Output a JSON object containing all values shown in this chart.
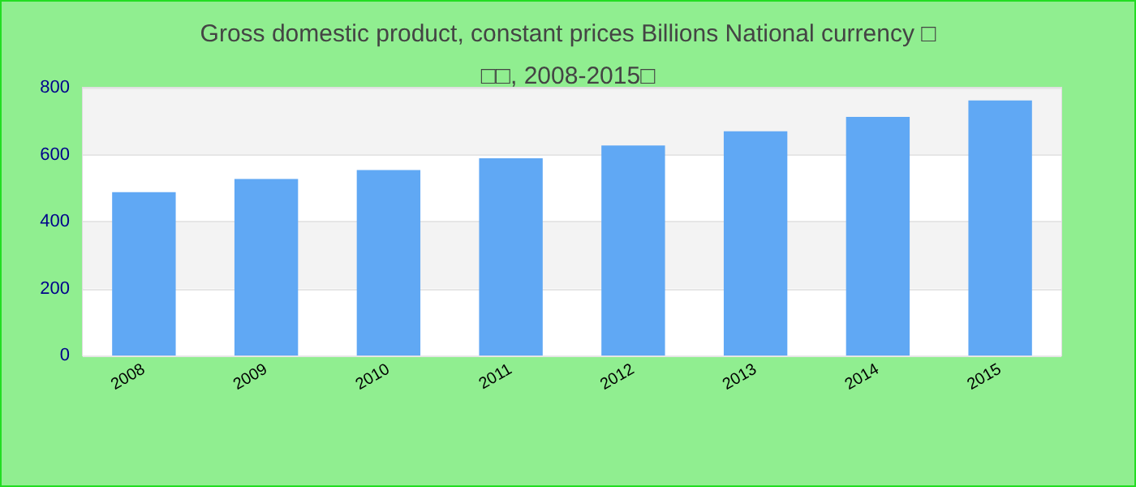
{
  "chart_data": {
    "type": "bar",
    "title": "Gross domestic product, constant prices Billions National currency □□□, 2008-2015□",
    "categories": [
      "2008",
      "2009",
      "2010",
      "2011",
      "2012",
      "2013",
      "2014",
      "2015"
    ],
    "values": [
      488,
      527,
      554,
      589,
      627,
      670,
      713,
      762
    ],
    "color": "#60a8f4",
    "ylim": [
      0,
      800
    ],
    "yticks": [
      0,
      200,
      400,
      600,
      800
    ],
    "grid": true
  }
}
